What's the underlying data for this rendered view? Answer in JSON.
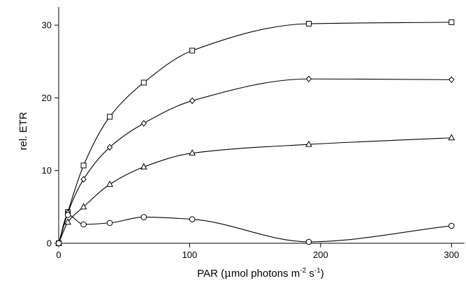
{
  "chart_data": {
    "type": "line",
    "title": "",
    "xlabel": {
      "pre": "PAR (",
      "mu": "μ",
      "mid": "mol photons m",
      "sup1": "-2",
      "mid2": " s",
      "sup2": "-1",
      "post": ")"
    },
    "ylabel": "rel. ETR",
    "xlim": [
      0,
      310
    ],
    "ylim": [
      0,
      32.5
    ],
    "xticks": [
      0,
      100,
      200,
      300
    ],
    "yticks": [
      0,
      10,
      20,
      30
    ],
    "grid": false,
    "legend": "none",
    "series": [
      {
        "marker": "square",
        "x": [
          0,
          7,
          19,
          39,
          65,
          102,
          191,
          300
        ],
        "y": [
          0,
          4.3,
          10.7,
          17.4,
          22.1,
          26.5,
          30.2,
          30.4
        ]
      },
      {
        "marker": "diamond",
        "x": [
          0,
          7,
          19,
          39,
          65,
          102,
          191,
          300
        ],
        "y": [
          0,
          4.2,
          8.8,
          13.2,
          16.5,
          19.6,
          22.6,
          22.5
        ]
      },
      {
        "marker": "triangle",
        "x": [
          0,
          7,
          19,
          39,
          65,
          102,
          191,
          300
        ],
        "y": [
          0,
          2.9,
          5.0,
          8.1,
          10.5,
          12.4,
          13.6,
          14.5
        ]
      },
      {
        "marker": "circle",
        "x": [
          0,
          7,
          19,
          39,
          65,
          102,
          191,
          300
        ],
        "y": [
          0,
          3.9,
          2.6,
          2.8,
          3.6,
          3.3,
          0.2,
          2.4
        ]
      }
    ]
  }
}
